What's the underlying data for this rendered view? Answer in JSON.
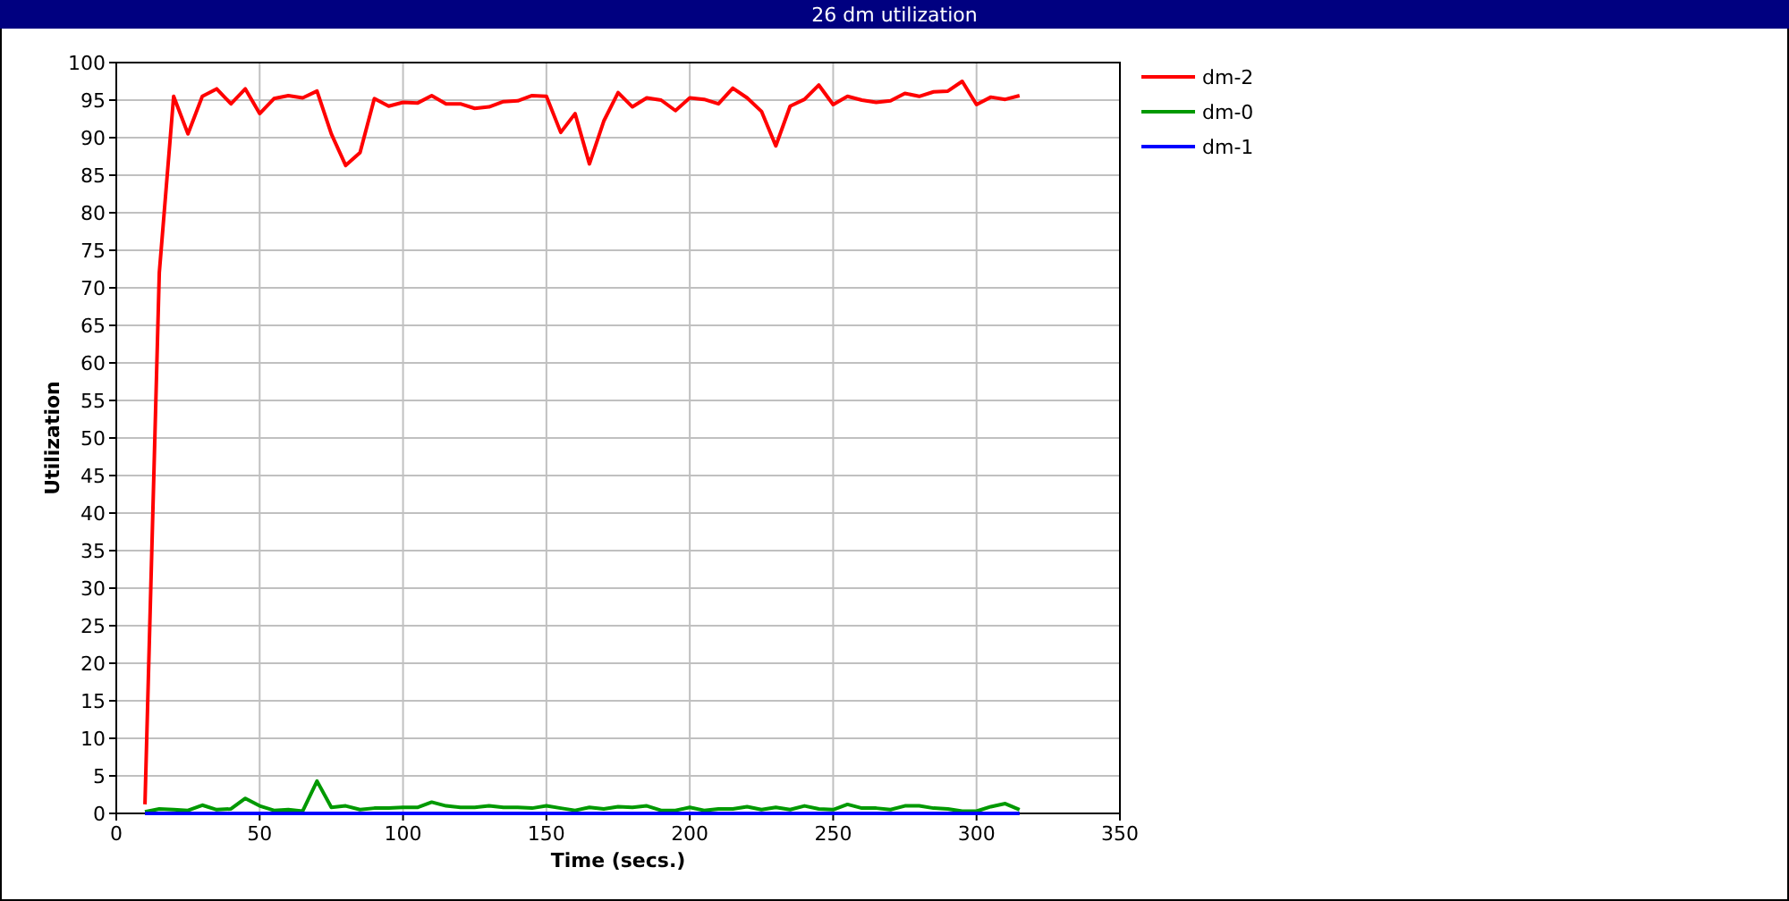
{
  "chart_data": {
    "type": "line",
    "title": "26 dm utilization",
    "xlabel": "Time (secs.)",
    "ylabel": "Utilization",
    "x": [
      10,
      15,
      20,
      25,
      30,
      35,
      40,
      45,
      50,
      55,
      60,
      65,
      70,
      75,
      80,
      85,
      90,
      95,
      100,
      105,
      110,
      115,
      120,
      125,
      130,
      135,
      140,
      145,
      150,
      155,
      160,
      165,
      170,
      175,
      180,
      185,
      190,
      195,
      200,
      205,
      210,
      215,
      220,
      225,
      230,
      235,
      240,
      245,
      250,
      255,
      260,
      265,
      270,
      275,
      280,
      285,
      290,
      295,
      300,
      305,
      310,
      315
    ],
    "series": [
      {
        "name": "dm-2",
        "color": "#ff0000",
        "values": [
          1.2,
          72,
          95.5,
          90.5,
          95.5,
          96.5,
          94.5,
          96.5,
          93.2,
          95.2,
          95.6,
          95.3,
          96.2,
          90.5,
          86.3,
          88,
          95.2,
          94.2,
          94.7,
          94.6,
          95.6,
          94.5,
          94.5,
          93.9,
          94.1,
          94.8,
          94.9,
          95.6,
          95.5,
          90.7,
          93.2,
          86.5,
          92.2,
          96,
          94.1,
          95.3,
          95,
          93.6,
          95.3,
          95.1,
          94.5,
          96.6,
          95.3,
          93.5,
          88.9,
          94.2,
          95.1,
          97,
          94.4,
          95.5,
          95,
          94.7,
          94.9,
          95.9,
          95.5,
          96.1,
          96.2,
          97.5,
          94.4,
          95.4,
          95.1,
          95.6
        ]
      },
      {
        "name": "dm-0",
        "color": "#009900",
        "values": [
          0.2,
          0.6,
          0.5,
          0.4,
          1.1,
          0.5,
          0.6,
          2,
          1,
          0.4,
          0.5,
          0.3,
          4.3,
          0.8,
          1,
          0.5,
          0.7,
          0.7,
          0.8,
          0.8,
          1.5,
          1,
          0.8,
          0.8,
          1,
          0.8,
          0.8,
          0.7,
          1,
          0.7,
          0.4,
          0.8,
          0.6,
          0.9,
          0.8,
          1,
          0.4,
          0.4,
          0.8,
          0.4,
          0.6,
          0.6,
          0.9,
          0.5,
          0.8,
          0.5,
          1,
          0.6,
          0.5,
          1.2,
          0.7,
          0.7,
          0.5,
          1,
          1,
          0.7,
          0.6,
          0.3,
          0.3,
          0.9,
          1.3,
          0.5
        ]
      },
      {
        "name": "dm-1",
        "color": "#0000ff",
        "values": [
          0,
          0,
          0,
          0,
          0,
          0,
          0,
          0,
          0,
          0,
          0,
          0,
          0,
          0,
          0,
          0,
          0,
          0,
          0,
          0,
          0,
          0,
          0,
          0,
          0,
          0,
          0,
          0,
          0,
          0,
          0,
          0,
          0,
          0,
          0,
          0,
          0,
          0,
          0,
          0,
          0,
          0,
          0,
          0,
          0,
          0,
          0,
          0,
          0,
          0,
          0,
          0,
          0,
          0,
          0,
          0,
          0,
          0,
          0,
          0,
          0,
          0
        ]
      }
    ],
    "xlim": [
      0,
      350
    ],
    "xticks": [
      0,
      50,
      100,
      150,
      200,
      250,
      300,
      350
    ],
    "ylim": [
      0,
      100
    ],
    "yticks": [
      0,
      5,
      10,
      15,
      20,
      25,
      30,
      35,
      40,
      45,
      50,
      55,
      60,
      65,
      70,
      75,
      80,
      85,
      90,
      95,
      100
    ],
    "grid": true,
    "legend": "top right",
    "marker": "none",
    "line_style": "solid"
  }
}
